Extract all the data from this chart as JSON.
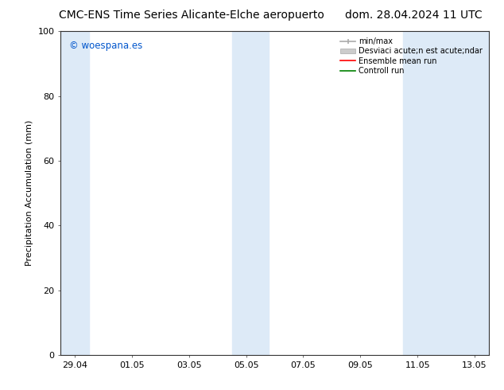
{
  "title_left": "CMC-ENS Time Series Alicante-Elche aeropuerto",
  "title_right": "dom. 28.04.2024 11 UTC",
  "ylabel": "Precipitation Accumulation (mm)",
  "xlim_dates": [
    "29.04",
    "01.05",
    "03.05",
    "05.05",
    "07.05",
    "09.05",
    "11.05",
    "13.05"
  ],
  "ylim": [
    0,
    100
  ],
  "yticks": [
    0,
    20,
    40,
    60,
    80,
    100
  ],
  "bg_color": "#ffffff",
  "plot_bg_color": "#ffffff",
  "shaded_band_color": "#ddeaf7",
  "watermark_text": "© woespana.es",
  "watermark_color": "#0055cc",
  "legend_labels": [
    "min/max",
    "Desviaci acute;n est acute;ndar",
    "Ensemble mean run",
    "Controll run"
  ],
  "legend_colors": [
    "#aaaaaa",
    "#cccccc",
    "#ff0000",
    "#008000"
  ],
  "title_fontsize": 10,
  "axis_fontsize": 8,
  "tick_fontsize": 8,
  "legend_fontsize": 7
}
